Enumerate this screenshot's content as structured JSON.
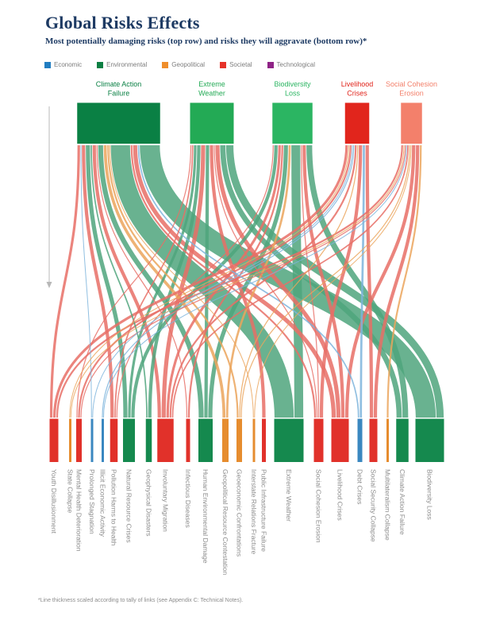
{
  "header": {
    "title": "Global Risks Effects",
    "subtitle": "Most potentially damaging risks (top row) and risks they will aggravate (bottom row)*"
  },
  "legend": [
    {
      "label": "Economic",
      "color": "#217dc1"
    },
    {
      "label": "Environmental",
      "color": "#0c7f43"
    },
    {
      "label": "Geopolitical",
      "color": "#ef8e2b"
    },
    {
      "label": "Societal",
      "color": "#e6332a"
    },
    {
      "label": "Technological",
      "color": "#8f2386"
    }
  ],
  "footnote": "*Line thickness scaled according to tally of links (see Appendix C: Technical Notes).",
  "chart_data": {
    "type": "sankey",
    "orientation": "vertical-top-to-bottom",
    "flow_meaning": "most potentially damaging risk (top) aggravates risk (bottom)",
    "weight_unit": "relative tally of links (line thickness)",
    "category_colors": {
      "Economic": "#3a87c0",
      "Environmental": "#15894e",
      "Geopolitical": "#e68c2e",
      "Societal": "#e1312a",
      "Technological": "#8f2386"
    },
    "ribbon_colors": {
      "Economic": "#7db4dc",
      "Environmental": "#4fa57d",
      "Geopolitical": "#eba45c",
      "Societal": "#e76e66",
      "Technological": "#b06aa8"
    },
    "top_nodes": [
      {
        "id": "climate-action-failure",
        "label": [
          "Climate Action",
          "Failure"
        ],
        "category": "Environmental",
        "center": 149.5,
        "color": "#0a8044"
      },
      {
        "id": "extreme-weather",
        "label": [
          "Extreme",
          "Weather"
        ],
        "category": "Environmental",
        "center": 267,
        "color": "#23aa55"
      },
      {
        "id": "biodiversity-loss",
        "label": [
          "Biodiversity",
          "Loss"
        ],
        "category": "Environmental",
        "center": 368.5,
        "color": "#2bb562"
      },
      {
        "id": "livelihood-crises",
        "label": [
          "Livelihood",
          "Crises"
        ],
        "category": "Societal",
        "center": 450,
        "color": "#e1251c"
      },
      {
        "id": "social-cohesion-erosion",
        "label": [
          "Social Cohesion",
          "Erosion"
        ],
        "category": "Societal",
        "center": 518.5,
        "color": "#f3806b"
      }
    ],
    "bottom_nodes": [
      {
        "id": "youth-disillusionment",
        "label": "Youth Disillusionment",
        "category": "Societal",
        "center": 68
      },
      {
        "id": "state-collapse",
        "label": "State Collapse",
        "category": "Geopolitical",
        "center": 88.5
      },
      {
        "id": "mental-health-deterioration",
        "label": "Mental Health Deterioration",
        "category": "Societal",
        "center": 99.5
      },
      {
        "id": "prolonged-stagnation",
        "label": "Prolonged Stagnation",
        "category": "Economic",
        "center": 116
      },
      {
        "id": "illicit-economic-activity",
        "label": "Illicit Economic Activity",
        "category": "Economic",
        "center": 129.5
      },
      {
        "id": "pollution-harms-to-health",
        "label": "Pollution Harms to Health",
        "category": "Societal",
        "center": 143.5
      },
      {
        "id": "natural-resource-crises",
        "label": "Natural Resource Crises",
        "category": "Environmental",
        "center": 162.5
      },
      {
        "id": "geophysical-disasters",
        "label": "Geophysical Disasters",
        "category": "Environmental",
        "center": 187.5
      },
      {
        "id": "involuntary-migration",
        "label": "Involuntary Migration",
        "category": "Societal",
        "center": 208.5
      },
      {
        "id": "infectious-diseases",
        "label": "Infectious Diseases",
        "category": "Societal",
        "center": 237
      },
      {
        "id": "human-environmental-damage",
        "label": "Human Environmental Damage",
        "category": "Environmental",
        "center": 259
      },
      {
        "id": "geopolitical-resource-contestation",
        "label": "Geopolitical Resource Contestation",
        "category": "Geopolitical",
        "center": 284
      },
      {
        "id": "geoeconomic-confrontations",
        "label": "Geoeconomic Confrontations",
        "category": "Geopolitical",
        "center": 301.5
      },
      {
        "id": "interstate-relations-fracture",
        "label": "Interstate Relations Fracture",
        "category": "Geopolitical",
        "center": 320
      },
      {
        "id": "public-infrastructure-failure",
        "label": "Public Infrastructure Failure",
        "category": "Societal",
        "center": 332.5
      },
      {
        "id": "extreme-weather-b",
        "label": "Extreme Weather",
        "category": "Environmental",
        "center": 364
      },
      {
        "id": "social-cohesion-erosion-b",
        "label": "Social Cohesion Erosion",
        "category": "Societal",
        "center": 401.5
      },
      {
        "id": "livelihood-crises-b",
        "label": "Livelihood Crises",
        "category": "Societal",
        "center": 428.5
      },
      {
        "id": "debt-crises",
        "label": "Debt Crises",
        "category": "Economic",
        "center": 453.5
      },
      {
        "id": "social-security-collapse",
        "label": "Social Security Collapse",
        "category": "Societal",
        "center": 470.5
      },
      {
        "id": "multilateralism-collapse",
        "label": "Multilateralism Collapse",
        "category": "Geopolitical",
        "center": 488.5
      },
      {
        "id": "climate-action-failure-b",
        "label": "Climate Action Failure",
        "category": "Environmental",
        "center": 507
      },
      {
        "id": "biodiversity-loss-b",
        "label": "Biodiversity Loss",
        "category": "Environmental",
        "center": 541.5
      }
    ],
    "links": [
      [
        "climate-action-failure",
        "youth-disillusionment",
        4
      ],
      [
        "climate-action-failure",
        "prolonged-stagnation",
        1.5
      ],
      [
        "climate-action-failure",
        "pollution-harms-to-health",
        5
      ],
      [
        "climate-action-failure",
        "natural-resource-crises",
        6
      ],
      [
        "climate-action-failure",
        "geophysical-disasters",
        2.5
      ],
      [
        "climate-action-failure",
        "involuntary-migration",
        5
      ],
      [
        "climate-action-failure",
        "infectious-diseases",
        2
      ],
      [
        "climate-action-failure",
        "human-environmental-damage",
        7
      ],
      [
        "climate-action-failure",
        "geopolitical-resource-contestation",
        4.5
      ],
      [
        "climate-action-failure",
        "geoeconomic-confrontations",
        3
      ],
      [
        "climate-action-failure",
        "interstate-relations-fracture",
        1.5
      ],
      [
        "climate-action-failure",
        "extreme-weather-b",
        25
      ],
      [
        "climate-action-failure",
        "social-cohesion-erosion-b",
        3
      ],
      [
        "climate-action-failure",
        "livelihood-crises-b",
        6
      ],
      [
        "climate-action-failure",
        "debt-crises",
        2.5
      ],
      [
        "climate-action-failure",
        "biodiversity-loss-b",
        26
      ],
      [
        "extreme-weather",
        "mental-health-deterioration",
        2
      ],
      [
        "extreme-weather",
        "pollution-harms-to-health",
        2.5
      ],
      [
        "extreme-weather",
        "natural-resource-crises",
        4
      ],
      [
        "extreme-weather",
        "geophysical-disasters",
        5
      ],
      [
        "extreme-weather",
        "involuntary-migration",
        6
      ],
      [
        "extreme-weather",
        "human-environmental-damage",
        5
      ],
      [
        "extreme-weather",
        "public-infrastructure-failure",
        5
      ],
      [
        "extreme-weather",
        "social-cohesion-erosion-b",
        2
      ],
      [
        "extreme-weather",
        "livelihood-crises-b",
        6
      ],
      [
        "extreme-weather",
        "climate-action-failure-b",
        7.5
      ],
      [
        "extreme-weather",
        "biodiversity-loss-b",
        10
      ],
      [
        "biodiversity-loss",
        "pollution-harms-to-health",
        2
      ],
      [
        "biodiversity-loss",
        "natural-resource-crises",
        5
      ],
      [
        "biodiversity-loss",
        "involuntary-migration",
        4
      ],
      [
        "biodiversity-loss",
        "infectious-diseases",
        3
      ],
      [
        "biodiversity-loss",
        "human-environmental-damage",
        6
      ],
      [
        "biodiversity-loss",
        "geopolitical-resource-contestation",
        3.5
      ],
      [
        "biodiversity-loss",
        "extreme-weather-b",
        12
      ],
      [
        "biodiversity-loss",
        "social-cohesion-erosion-b",
        2
      ],
      [
        "biodiversity-loss",
        "livelihood-crises-b",
        5
      ],
      [
        "biodiversity-loss",
        "climate-action-failure-b",
        8
      ],
      [
        "livelihood-crises",
        "youth-disillusionment",
        4
      ],
      [
        "livelihood-crises",
        "state-collapse",
        1.5
      ],
      [
        "livelihood-crises",
        "mental-health-deterioration",
        3
      ],
      [
        "livelihood-crises",
        "prolonged-stagnation",
        1.5
      ],
      [
        "livelihood-crises",
        "illicit-economic-activity",
        2
      ],
      [
        "livelihood-crises",
        "involuntary-migration",
        3
      ],
      [
        "livelihood-crises",
        "geoeconomic-confrontations",
        2
      ],
      [
        "livelihood-crises",
        "social-cohesion-erosion-b",
        5
      ],
      [
        "livelihood-crises",
        "debt-crises",
        3.5
      ],
      [
        "livelihood-crises",
        "social-security-collapse",
        5
      ],
      [
        "social-cohesion-erosion",
        "youth-disillusionment",
        3
      ],
      [
        "social-cohesion-erosion",
        "state-collapse",
        1.5
      ],
      [
        "social-cohesion-erosion",
        "mental-health-deterioration",
        2
      ],
      [
        "social-cohesion-erosion",
        "illicit-economic-activity",
        1
      ],
      [
        "social-cohesion-erosion",
        "involuntary-migration",
        2.5
      ],
      [
        "social-cohesion-erosion",
        "geoeconomic-confrontations",
        2
      ],
      [
        "social-cohesion-erosion",
        "interstate-relations-fracture",
        1.5
      ],
      [
        "social-cohesion-erosion",
        "multilateralism-collapse",
        3
      ],
      [
        "social-cohesion-erosion",
        "livelihood-crises-b",
        5
      ],
      [
        "social-cohesion-erosion",
        "social-security-collapse",
        5
      ]
    ]
  }
}
